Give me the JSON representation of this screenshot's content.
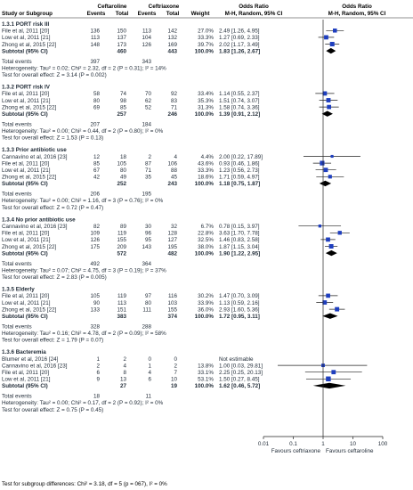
{
  "header": {
    "study": "Study or Subgroup",
    "group1": "Ceftaroline",
    "group2": "Ceftriaxone",
    "events": "Events",
    "total": "Total",
    "weight": "Weight",
    "or_title": "Odds Ratio",
    "or_method": "M-H, Random, 95% CI"
  },
  "axis": {
    "ticks": [
      "0.01",
      "0.1",
      "1",
      "10",
      "100"
    ],
    "left_label": "Favours ceftriaxone",
    "right_label": "Favours ceftaroline"
  },
  "footer": "Test for subgroup differences: Chi² = 3.18, df = 5 (p = 067), I² = 0%",
  "colors": {
    "square": "#1f3fbf",
    "diamond": "#000000",
    "text": "#1f2a36",
    "line": "#222222"
  },
  "chart_data": {
    "type": "forest",
    "scale": "log",
    "xlim": [
      0.01,
      100
    ],
    "reference_line": 1,
    "subgroups": [
      {
        "title": "1.3.1 PORT risk III",
        "studies": [
          {
            "name": "File et al, 2011 [20]",
            "e1": "136",
            "t1": "150",
            "e2": "113",
            "t2": "142",
            "weight": "27.0%",
            "ci_text": "2.49 [1.26, 4.95]",
            "or": 2.49,
            "lo": 1.26,
            "hi": 4.95
          },
          {
            "name": "Low et al, 2011 [21]",
            "e1": "113",
            "t1": "137",
            "e2": "104",
            "t2": "132",
            "weight": "33.3%",
            "ci_text": "1.27 [0.69, 2.33]",
            "or": 1.27,
            "lo": 0.69,
            "hi": 2.33
          },
          {
            "name": "Zhong et al, 2015 [22]",
            "e1": "148",
            "t1": "173",
            "e2": "126",
            "t2": "169",
            "weight": "39.7%",
            "ci_text": "2.02 [1.17, 3.49]",
            "or": 2.02,
            "lo": 1.17,
            "hi": 3.49
          }
        ],
        "subtotal": {
          "label": "Subtotal (95% CI)",
          "t1": "460",
          "t2": "443",
          "weight": "100.0%",
          "ci_text": "1.83 [1.26, 2.67]",
          "or": 1.83,
          "lo": 1.26,
          "hi": 2.67
        },
        "total_events": {
          "label": "Total events",
          "e1": "397",
          "e2": "343"
        },
        "heterogeneity": "Heterogeneity: Tau² = 0.02; Chi² = 2.32, df = 2 (P = 0.31); I² = 14%",
        "overall": "Test for overall effect: Z = 3.14 (P = 0.002)"
      },
      {
        "title": "1.3.2 PORT risk IV",
        "studies": [
          {
            "name": "File et al, 2011 [20]",
            "e1": "58",
            "t1": "74",
            "e2": "70",
            "t2": "92",
            "weight": "33.4%",
            "ci_text": "1.14 [0.55, 2.37]",
            "or": 1.14,
            "lo": 0.55,
            "hi": 2.37
          },
          {
            "name": "Low et al, 2011 [21]",
            "e1": "80",
            "t1": "98",
            "e2": "62",
            "t2": "83",
            "weight": "35.3%",
            "ci_text": "1.51 [0.74, 3.07]",
            "or": 1.51,
            "lo": 0.74,
            "hi": 3.07
          },
          {
            "name": "Zhong et al, 2015 [22]",
            "e1": "69",
            "t1": "85",
            "e2": "52",
            "t2": "71",
            "weight": "31.3%",
            "ci_text": "1.58 [0.74, 3.36]",
            "or": 1.58,
            "lo": 0.74,
            "hi": 3.36
          }
        ],
        "subtotal": {
          "label": "Subtotal (95% CI)",
          "t1": "257",
          "t2": "246",
          "weight": "100.0%",
          "ci_text": "1.39 [0.91, 2.12]",
          "or": 1.39,
          "lo": 0.91,
          "hi": 2.12
        },
        "total_events": {
          "label": "Total events",
          "e1": "207",
          "e2": "184"
        },
        "heterogeneity": "Heterogeneity: Tau² = 0.00; Chi² = 0.44, df = 2 (P = 0.80); I² = 0%",
        "overall": "Test for overall effect: Z = 1.53 (P = 0.13)"
      },
      {
        "title": "1.3.3 Prior antibiotic use",
        "studies": [
          {
            "name": "Cannavino et al, 2016 [23]",
            "e1": "12",
            "t1": "18",
            "e2": "2",
            "t2": "4",
            "weight": "4.4%",
            "ci_text": "2.00 [0.22, 17.89]",
            "or": 2.0,
            "lo": 0.22,
            "hi": 17.89
          },
          {
            "name": "File et al, 2011 [20]",
            "e1": "85",
            "t1": "105",
            "e2": "87",
            "t2": "106",
            "weight": "43.6%",
            "ci_text": "0.93 [0.46, 1.86]",
            "or": 0.93,
            "lo": 0.46,
            "hi": 1.86
          },
          {
            "name": "Low et al, 2011 [21]",
            "e1": "67",
            "t1": "80",
            "e2": "71",
            "t2": "88",
            "weight": "33.3%",
            "ci_text": "1.23 [0.56, 2.73]",
            "or": 1.23,
            "lo": 0.56,
            "hi": 2.73
          },
          {
            "name": "Zhong et al, 2015 [22]",
            "e1": "42",
            "t1": "49",
            "e2": "35",
            "t2": "45",
            "weight": "18.6%",
            "ci_text": "1.71 [0.59, 4.97]",
            "or": 1.71,
            "lo": 0.59,
            "hi": 4.97
          }
        ],
        "subtotal": {
          "label": "Subtotal (95% CI)",
          "t1": "252",
          "t2": "243",
          "weight": "100.0%",
          "ci_text": "1.18 [0.75, 1.87]",
          "or": 1.18,
          "lo": 0.75,
          "hi": 1.87
        },
        "total_events": {
          "label": "Total events",
          "e1": "206",
          "e2": "195"
        },
        "heterogeneity": "Heterogeneity: Tau² = 0.00; Chi² = 1.16, df = 3 (P = 0.76); I² = 0%",
        "overall": "Test for overall effect: Z = 0.72 (P = 0.47)"
      },
      {
        "title": "1.3.4 No prior antibiotic use",
        "studies": [
          {
            "name": "Cannavino et al, 2016 [23]",
            "e1": "82",
            "t1": "89",
            "e2": "30",
            "t2": "32",
            "weight": "6.7%",
            "ci_text": "0.78 [0.15, 3.97]",
            "or": 0.78,
            "lo": 0.15,
            "hi": 3.97
          },
          {
            "name": "File et al, 2011 [20]",
            "e1": "109",
            "t1": "119",
            "e2": "96",
            "t2": "128",
            "weight": "22.8%",
            "ci_text": "3.63 [1.70, 7.78]",
            "or": 3.63,
            "lo": 1.7,
            "hi": 7.78
          },
          {
            "name": "Low et al, 2011 [21]",
            "e1": "126",
            "t1": "155",
            "e2": "95",
            "t2": "127",
            "weight": "32.5%",
            "ci_text": "1.46 [0.83, 2.58]",
            "or": 1.46,
            "lo": 0.83,
            "hi": 2.58
          },
          {
            "name": "Zhong et al, 2015 [22]",
            "e1": "175",
            "t1": "209",
            "e2": "143",
            "t2": "195",
            "weight": "38.0%",
            "ci_text": "1.87 [1.15, 3.04]",
            "or": 1.87,
            "lo": 1.15,
            "hi": 3.04
          }
        ],
        "subtotal": {
          "label": "Subtotal (95% CI)",
          "t1": "572",
          "t2": "482",
          "weight": "100.0%",
          "ci_text": "1.90 [1.22, 2.95]",
          "or": 1.9,
          "lo": 1.22,
          "hi": 2.95
        },
        "total_events": {
          "label": "Total events",
          "e1": "492",
          "e2": "364"
        },
        "heterogeneity": "Heterogeneity: Tau² = 0.07; Chi² = 4.75, df = 3 (P = 0.19); I² = 37%",
        "overall": "Test for overall effect: Z = 2.83 (P = 0.005)"
      },
      {
        "title": "1.3.5 Elderly",
        "studies": [
          {
            "name": "File et al, 2011 [20]",
            "e1": "105",
            "t1": "119",
            "e2": "97",
            "t2": "116",
            "weight": "30.2%",
            "ci_text": "1.47 [0.70, 3.09]",
            "or": 1.47,
            "lo": 0.7,
            "hi": 3.09
          },
          {
            "name": "Low et al, 2011 [21]",
            "e1": "90",
            "t1": "113",
            "e2": "80",
            "t2": "103",
            "weight": "33.9%",
            "ci_text": "1.13 [0.59, 2.16]",
            "or": 1.13,
            "lo": 0.59,
            "hi": 2.16
          },
          {
            "name": "Zhong et al, 2015 [22]",
            "e1": "133",
            "t1": "151",
            "e2": "111",
            "t2": "155",
            "weight": "36.0%",
            "ci_text": "2.93 [1.60, 5.36]",
            "or": 2.93,
            "lo": 1.6,
            "hi": 5.36
          }
        ],
        "subtotal": {
          "label": "Subtotal (95% CI)",
          "t1": "383",
          "t2": "374",
          "weight": "100.0%",
          "ci_text": "1.72 [0.95, 3.11]",
          "or": 1.72,
          "lo": 0.95,
          "hi": 3.11
        },
        "total_events": {
          "label": "Total events",
          "e1": "328",
          "e2": "288"
        },
        "heterogeneity": "Heterogeneity: Tau² = 0.16; Chi² = 4.78, df = 2 (P = 0.09); I² = 58%",
        "overall": "Test for overall effect: Z = 1.79 (P = 0.07)"
      },
      {
        "title": "1.3.6 Bacteremia",
        "studies": [
          {
            "name": "Blumer et al, 2016 [24]",
            "e1": "1",
            "t1": "2",
            "e2": "0",
            "t2": "0",
            "weight": "",
            "ci_text": "Not estimable",
            "or": null,
            "lo": null,
            "hi": null
          },
          {
            "name": "Cannavino et al, 2016 [23]",
            "e1": "2",
            "t1": "4",
            "e2": "1",
            "t2": "2",
            "weight": "13.8%",
            "ci_text": "1.00 [0.03, 29.81]",
            "or": 1.0,
            "lo": 0.03,
            "hi": 29.81
          },
          {
            "name": "File et al, 2011 [20]",
            "e1": "6",
            "t1": "8",
            "e2": "4",
            "t2": "7",
            "weight": "33.1%",
            "ci_text": "2.25 [0.25, 20.13]",
            "or": 2.25,
            "lo": 0.25,
            "hi": 20.13
          },
          {
            "name": "Low et al, 2011 [21]",
            "e1": "9",
            "t1": "13",
            "e2": "6",
            "t2": "10",
            "weight": "53.1%",
            "ci_text": "1.50 [0.27, 8.45]",
            "or": 1.5,
            "lo": 0.27,
            "hi": 8.45
          }
        ],
        "subtotal": {
          "label": "Subtotal (95% CI)",
          "t1": "27",
          "t2": "19",
          "weight": "100.0%",
          "ci_text": "1.62 [0.46, 5.72]",
          "or": 1.62,
          "lo": 0.46,
          "hi": 5.72
        },
        "total_events": {
          "label": "Total events",
          "e1": "18",
          "e2": "11"
        },
        "heterogeneity": "Heterogeneity: Tau² = 0.00; Chi² = 0.17, df = 2 (P = 0.92); I² = 0%",
        "overall": "Test for overall effect: Z = 0.75 (P = 0.45)"
      }
    ]
  }
}
